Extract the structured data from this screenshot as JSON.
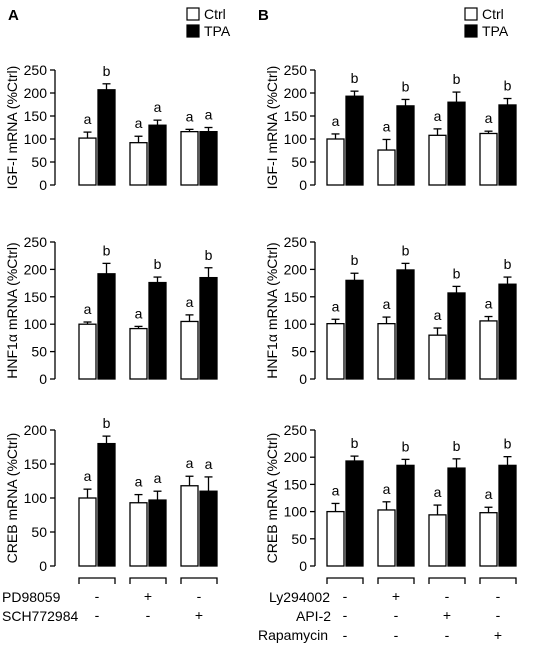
{
  "legend": {
    "ctrl_label": "Ctrl",
    "tpa_label": "TPA",
    "ctrl_color": "#ffffff",
    "tpa_color": "#000000"
  },
  "panels": {
    "A": "A",
    "B": "B"
  },
  "treatments": {
    "A": [
      {
        "label": "PD98059",
        "marks": [
          "-",
          "+",
          "-"
        ]
      },
      {
        "label": "SCH772984",
        "marks": [
          "-",
          "-",
          "+"
        ]
      }
    ],
    "B": [
      {
        "label": "Ly294002",
        "marks": [
          "-",
          "+",
          "-",
          "-"
        ]
      },
      {
        "label": "API-2",
        "marks": [
          "-",
          "-",
          "+",
          "-"
        ]
      },
      {
        "label": "Rapamycin",
        "marks": [
          "-",
          "-",
          "-",
          "+"
        ]
      }
    ]
  },
  "chart_data": [
    {
      "type": "bar",
      "panel": "A",
      "ylabel": "IGF-I mRNA (%Ctrl)",
      "ylim": [
        0,
        250
      ],
      "yticks": [
        0,
        50,
        100,
        150,
        200,
        250
      ],
      "groups": 3,
      "series": [
        {
          "name": "Ctrl",
          "values": [
            102,
            92,
            116
          ],
          "errors": [
            13,
            14,
            5
          ],
          "letters": [
            "a",
            "a",
            "a"
          ]
        },
        {
          "name": "TPA",
          "values": [
            207,
            130,
            116
          ],
          "errors": [
            13,
            11,
            9
          ],
          "letters": [
            "b",
            "a",
            "a"
          ]
        }
      ]
    },
    {
      "type": "bar",
      "panel": "A",
      "ylabel": "HNF1α mRNA (%Ctrl)",
      "ylim": [
        0,
        250
      ],
      "yticks": [
        0,
        50,
        100,
        150,
        200,
        250
      ],
      "groups": 3,
      "series": [
        {
          "name": "Ctrl",
          "values": [
            100,
            92,
            105
          ],
          "errors": [
            4,
            4,
            12
          ],
          "letters": [
            "a",
            "a",
            "a"
          ]
        },
        {
          "name": "TPA",
          "values": [
            192,
            176,
            185
          ],
          "errors": [
            19,
            10,
            18
          ],
          "letters": [
            "b",
            "b",
            "b"
          ]
        }
      ]
    },
    {
      "type": "bar",
      "panel": "A",
      "ylabel": "CREB mRNA (%Ctrl)",
      "ylim": [
        0,
        200
      ],
      "yticks": [
        0,
        50,
        100,
        150,
        200
      ],
      "groups": 3,
      "series": [
        {
          "name": "Ctrl",
          "values": [
            100,
            93,
            118
          ],
          "errors": [
            13,
            12,
            14
          ],
          "letters": [
            "a",
            "a",
            "a"
          ]
        },
        {
          "name": "TPA",
          "values": [
            180,
            97,
            110
          ],
          "errors": [
            11,
            13,
            21
          ],
          "letters": [
            "b",
            "a",
            "a"
          ]
        }
      ]
    },
    {
      "type": "bar",
      "panel": "B",
      "ylabel": "IGF-I mRNA (%Ctrl)",
      "ylim": [
        0,
        250
      ],
      "yticks": [
        0,
        50,
        100,
        150,
        200,
        250
      ],
      "groups": 4,
      "series": [
        {
          "name": "Ctrl",
          "values": [
            100,
            76,
            108,
            112
          ],
          "errors": [
            11,
            23,
            14,
            5
          ],
          "letters": [
            "a",
            "a",
            "a",
            "a"
          ]
        },
        {
          "name": "TPA",
          "values": [
            193,
            172,
            180,
            174
          ],
          "errors": [
            11,
            14,
            22,
            14
          ],
          "letters": [
            "b",
            "b",
            "b",
            "b"
          ]
        }
      ]
    },
    {
      "type": "bar",
      "panel": "B",
      "ylabel": "HNF1α mRNA (%Ctrl)",
      "ylim": [
        0,
        250
      ],
      "yticks": [
        0,
        50,
        100,
        150,
        200,
        250
      ],
      "groups": 4,
      "series": [
        {
          "name": "Ctrl",
          "values": [
            101,
            101,
            80,
            106
          ],
          "errors": [
            8,
            12,
            13,
            8
          ],
          "letters": [
            "a",
            "a",
            "a",
            "a"
          ]
        },
        {
          "name": "TPA",
          "values": [
            180,
            199,
            157,
            173
          ],
          "errors": [
            13,
            12,
            12,
            13
          ],
          "letters": [
            "b",
            "b",
            "b",
            "b"
          ]
        }
      ]
    },
    {
      "type": "bar",
      "panel": "B",
      "ylabel": "CREB mRNA (%Ctrl)",
      "ylim": [
        0,
        250
      ],
      "yticks": [
        0,
        50,
        100,
        150,
        200,
        250
      ],
      "groups": 4,
      "series": [
        {
          "name": "Ctrl",
          "values": [
            100,
            103,
            94,
            98
          ],
          "errors": [
            15,
            15,
            18,
            10
          ],
          "letters": [
            "a",
            "a",
            "a",
            "a"
          ]
        },
        {
          "name": "TPA",
          "values": [
            193,
            185,
            180,
            185
          ],
          "errors": [
            9,
            11,
            17,
            16
          ],
          "letters": [
            "b",
            "b",
            "b",
            "b"
          ]
        }
      ]
    }
  ]
}
